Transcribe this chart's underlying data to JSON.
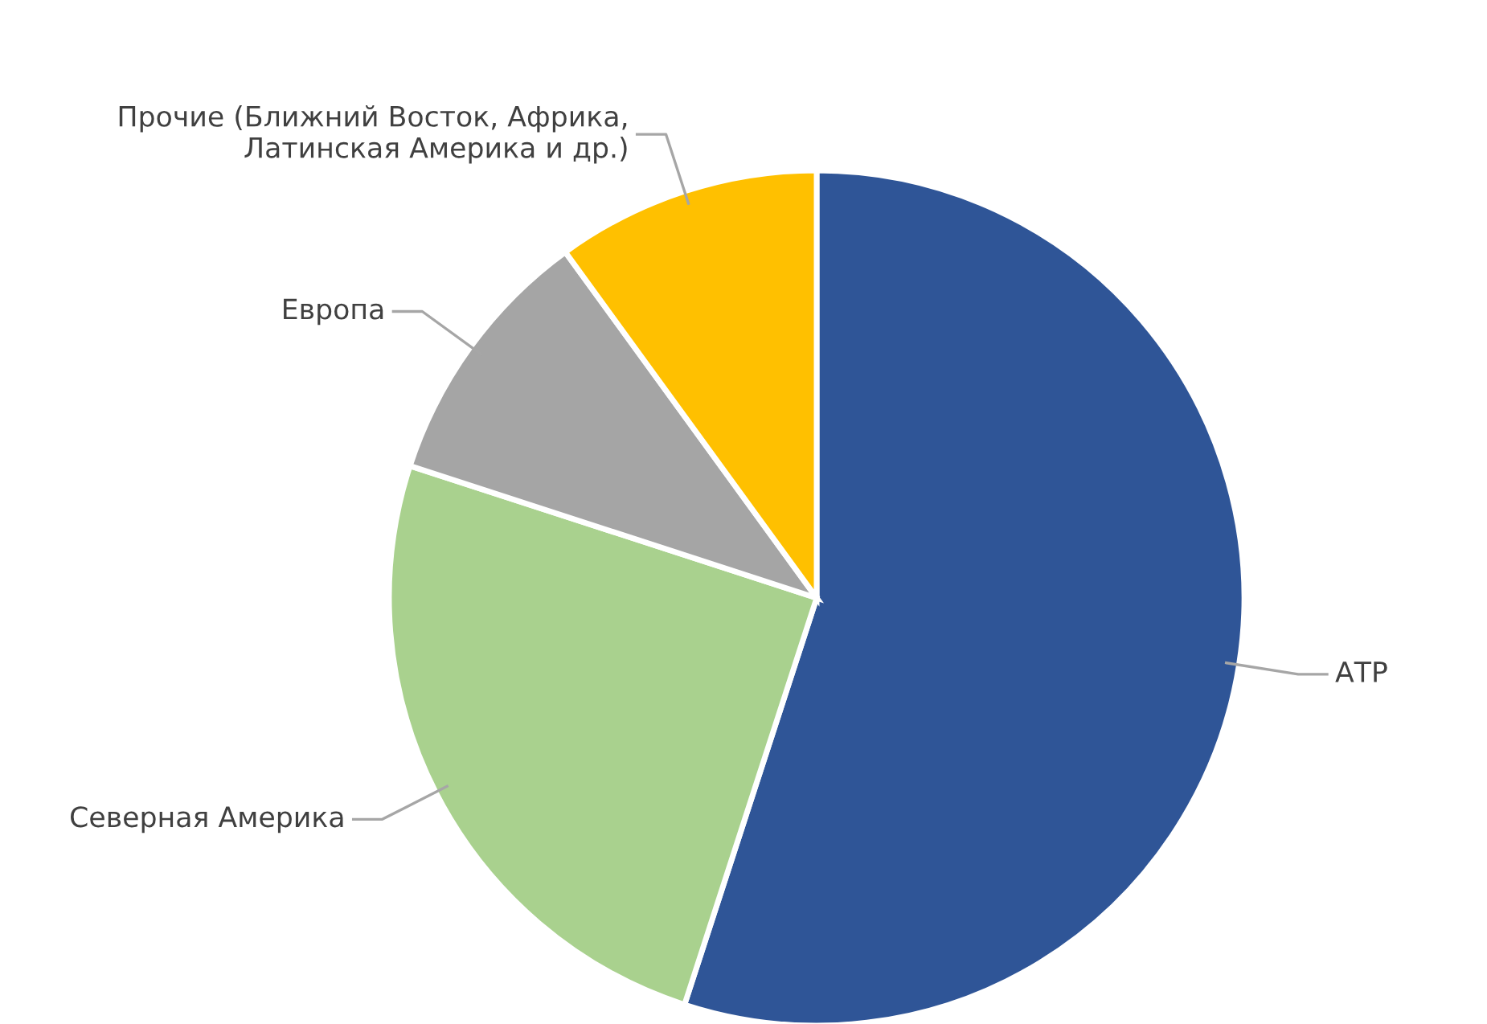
{
  "chart_data": {
    "type": "pie",
    "categories": [
      "АТР",
      "Северная Америка",
      "Европа",
      "Прочие (Ближний Восток, Африка,\nЛатинская Америка и др.)"
    ],
    "values": [
      55,
      25,
      10,
      10
    ],
    "colors": [
      "#2f5597",
      "#a9d18e",
      "#a5a5a5",
      "#ffc000"
    ],
    "legend": false
  }
}
